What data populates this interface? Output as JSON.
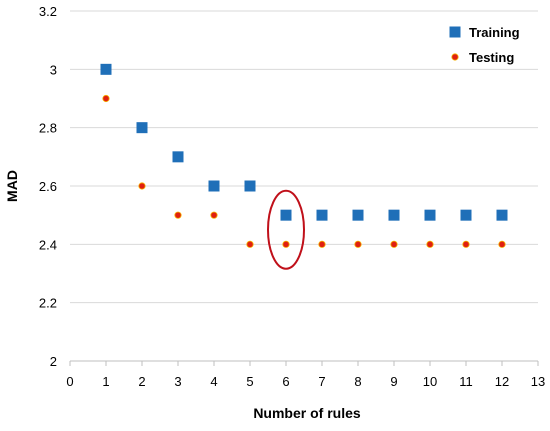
{
  "chart_data": {
    "type": "scatter",
    "xlabel": "Number of rules",
    "ylabel": "MAD",
    "xlim": [
      0,
      13
    ],
    "ylim": [
      2,
      3.2
    ],
    "xticks": [
      "0",
      "1",
      "2",
      "3",
      "4",
      "5",
      "6",
      "7",
      "8",
      "9",
      "10",
      "11",
      "12",
      "13"
    ],
    "yticks": [
      "2",
      "2.2",
      "2.4",
      "2.6",
      "2.8",
      "3",
      "3.2"
    ],
    "grid": "horizontal",
    "legend_position": "top-right",
    "series": [
      {
        "name": "Training",
        "marker": "square",
        "color": "#1F6FB8",
        "x": [
          1,
          2,
          3,
          4,
          5,
          6,
          7,
          8,
          9,
          10,
          11,
          12
        ],
        "y": [
          3.0,
          2.8,
          2.7,
          2.6,
          2.6,
          2.5,
          2.5,
          2.5,
          2.5,
          2.5,
          2.5,
          2.5
        ]
      },
      {
        "name": "Testing",
        "marker": "circle",
        "color": "#E02010",
        "x": [
          1,
          2,
          3,
          4,
          5,
          6,
          7,
          8,
          9,
          10,
          11,
          12
        ],
        "y": [
          2.9,
          2.6,
          2.5,
          2.5,
          2.4,
          2.4,
          2.4,
          2.4,
          2.4,
          2.4,
          2.4,
          2.4
        ]
      }
    ],
    "annotations": [
      {
        "type": "ellipse",
        "x": 6,
        "y": 2.45,
        "color": "#C0101A"
      }
    ]
  }
}
